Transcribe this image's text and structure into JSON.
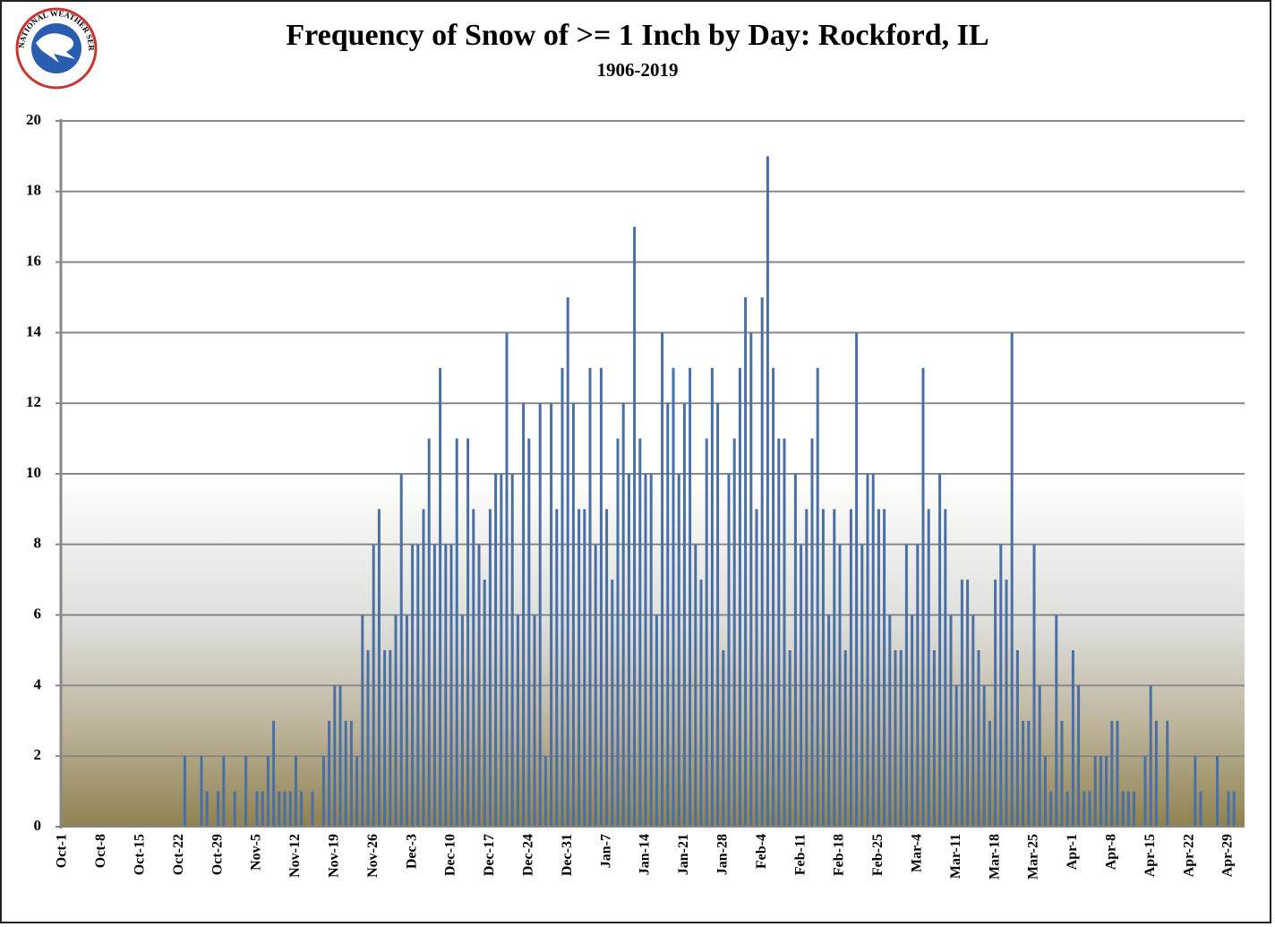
{
  "logo": "NATIONAL WEATHER SERVICE",
  "chart_data": {
    "type": "bar",
    "title": "Frequency of Snow of >= 1 Inch by Day:  Rockford, IL",
    "subtitle": "1906-2019",
    "color": "#4a6fa5",
    "grid": true,
    "ylim": [
      0,
      20
    ],
    "yticks": [
      0,
      2,
      4,
      6,
      8,
      10,
      12,
      14,
      16,
      18,
      20
    ],
    "categories": [
      "Oct-1",
      null,
      null,
      null,
      null,
      null,
      null,
      "Oct-8",
      null,
      null,
      null,
      null,
      null,
      null,
      "Oct-15",
      null,
      null,
      null,
      null,
      null,
      null,
      "Oct-22",
      null,
      null,
      null,
      null,
      null,
      null,
      "Oct-29",
      null,
      null,
      null,
      null,
      null,
      null,
      "Nov-5",
      null,
      null,
      null,
      null,
      null,
      null,
      "Nov-12",
      null,
      null,
      null,
      null,
      null,
      null,
      "Nov-19",
      null,
      null,
      null,
      null,
      null,
      null,
      "Nov-26",
      null,
      null,
      null,
      null,
      null,
      null,
      "Dec-3",
      null,
      null,
      null,
      null,
      null,
      null,
      "Dec-10",
      null,
      null,
      null,
      null,
      null,
      null,
      "Dec-17",
      null,
      null,
      null,
      null,
      null,
      null,
      "Dec-24",
      null,
      null,
      null,
      null,
      null,
      null,
      "Dec-31",
      null,
      null,
      null,
      null,
      null,
      null,
      "Jan-7",
      null,
      null,
      null,
      null,
      null,
      null,
      "Jan-14",
      null,
      null,
      null,
      null,
      null,
      null,
      "Jan-21",
      null,
      null,
      null,
      null,
      null,
      null,
      "Jan-28",
      null,
      null,
      null,
      null,
      null,
      null,
      "Feb-4",
      null,
      null,
      null,
      null,
      null,
      null,
      "Feb-11",
      null,
      null,
      null,
      null,
      null,
      null,
      "Feb-18",
      null,
      null,
      null,
      null,
      null,
      null,
      "Feb-25",
      null,
      null,
      null,
      null,
      null,
      null,
      "Mar-4",
      null,
      null,
      null,
      null,
      null,
      null,
      "Mar-11",
      null,
      null,
      null,
      null,
      null,
      null,
      "Mar-18",
      null,
      null,
      null,
      null,
      null,
      null,
      "Mar-25",
      null,
      null,
      null,
      null,
      null,
      null,
      "Apr-1",
      null,
      null,
      null,
      null,
      null,
      null,
      "Apr-8",
      null,
      null,
      null,
      null,
      null,
      null,
      "Apr-15",
      null,
      null,
      null,
      null,
      null,
      null,
      "Apr-22",
      null,
      null,
      null,
      null,
      null,
      null,
      "Apr-29",
      null
    ],
    "values": [
      0,
      0,
      0,
      0,
      0,
      0,
      0,
      0,
      0,
      0,
      0,
      0,
      0,
      0,
      0,
      0,
      0,
      0,
      0,
      0,
      0,
      0,
      2,
      0,
      0,
      2,
      1,
      0,
      1,
      2,
      0,
      1,
      0,
      2,
      0,
      1,
      1,
      2,
      3,
      1,
      1,
      1,
      2,
      1,
      0,
      1,
      0,
      2,
      3,
      4,
      4,
      3,
      3,
      2,
      6,
      5,
      8,
      9,
      5,
      5,
      6,
      10,
      6,
      8,
      8,
      9,
      11,
      8,
      13,
      8,
      8,
      11,
      6,
      11,
      9,
      8,
      7,
      9,
      10,
      10,
      14,
      10,
      6,
      12,
      11,
      6,
      12,
      2,
      12,
      9,
      13,
      15,
      12,
      9,
      9,
      13,
      8,
      13,
      9,
      7,
      11,
      12,
      10,
      17,
      11,
      10,
      10,
      6,
      14,
      12,
      13,
      10,
      12,
      13,
      8,
      7,
      11,
      13,
      12,
      5,
      10,
      11,
      13,
      15,
      14,
      9,
      15,
      19,
      13,
      11,
      11,
      5,
      10,
      8,
      9,
      11,
      13,
      9,
      6,
      9,
      8,
      5,
      9,
      14,
      8,
      10,
      10,
      9,
      9,
      6,
      5,
      5,
      8,
      6,
      8,
      13,
      9,
      5,
      10,
      9,
      6,
      4,
      7,
      7,
      6,
      5,
      4,
      3,
      7,
      8,
      7,
      14,
      5,
      3,
      3,
      8,
      4,
      2,
      1,
      6,
      3,
      1,
      5,
      4,
      1,
      1,
      2,
      2,
      2,
      3,
      3,
      1,
      1,
      1,
      0,
      2,
      4,
      3,
      0,
      3,
      0,
      0,
      0,
      0,
      2,
      1,
      0,
      0,
      2,
      0,
      1,
      1
    ]
  }
}
